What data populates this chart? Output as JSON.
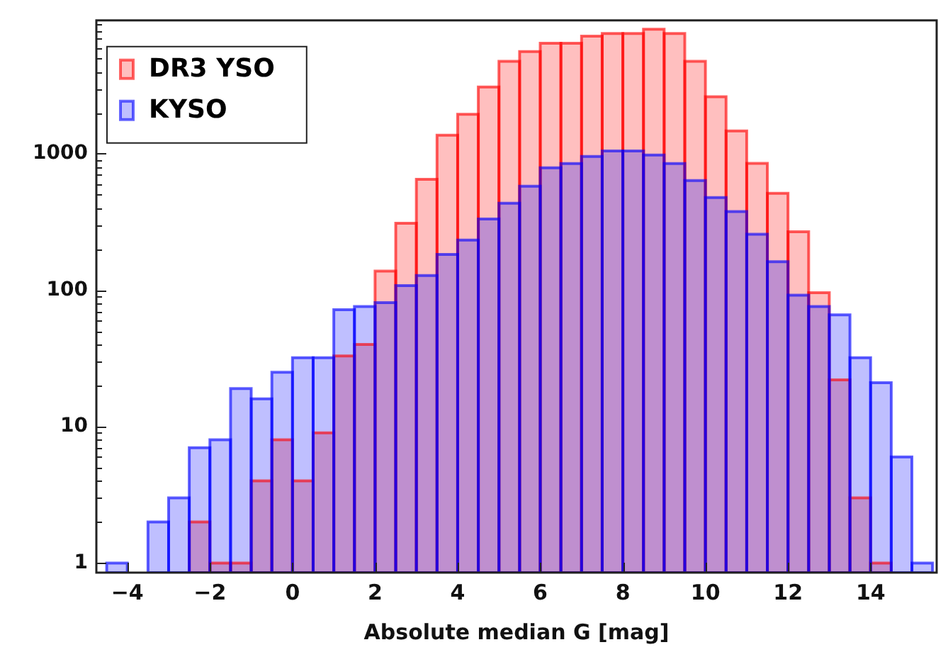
{
  "chart_data": {
    "type": "histogram",
    "xlabel": "Absolute median G [mag]",
    "bins": [
      -4.5,
      -4,
      -3.5,
      -3,
      -2.5,
      -2,
      -1.5,
      -1,
      -0.5,
      0,
      0.5,
      1,
      1.5,
      2,
      2.5,
      3,
      3.5,
      4,
      4.5,
      5,
      5.5,
      6,
      6.5,
      7,
      7.5,
      8,
      8.5,
      9,
      9.5,
      10,
      10.5,
      11,
      11.5,
      12,
      12.5,
      13,
      13.5,
      14,
      14.5,
      15,
      15.5
    ],
    "series": [
      {
        "name": "DR3 YSO",
        "color": "#ff0000",
        "values": [
          null,
          null,
          null,
          null,
          2,
          1,
          1,
          4,
          8,
          4,
          9,
          33,
          40,
          138,
          310,
          650,
          1370,
          1950,
          3090,
          4760,
          5620,
          6470,
          6470,
          7280,
          7620,
          7620,
          8190,
          7620,
          4760,
          2620,
          1470,
          850,
          513,
          268,
          96,
          22,
          3,
          1,
          null,
          null
        ]
      },
      {
        "name": "KYSO",
        "color": "#0000ff",
        "values": [
          1,
          null,
          2,
          3,
          7,
          8,
          19,
          16,
          25,
          32,
          32,
          72,
          76,
          81,
          108,
          128,
          183,
          233,
          333,
          434,
          578,
          790,
          848,
          955,
          1050,
          1050,
          980,
          848,
          636,
          478,
          377,
          257,
          162,
          92,
          76,
          66,
          32,
          21,
          6,
          1
        ]
      }
    ],
    "xlim": [
      -4.75,
      15.6
    ],
    "ylim": [
      0.85,
      9500
    ],
    "xticks": [
      -4,
      -2,
      0,
      2,
      4,
      6,
      8,
      10,
      12,
      14
    ],
    "yticks": [
      1,
      {
        "value": 2,
        "label": null
      },
      {
        "value": 3,
        "label": null
      },
      {
        "value": 4,
        "label": null
      },
      {
        "value": 5,
        "label": null
      },
      {
        "value": 6,
        "label": null
      },
      {
        "value": 7,
        "label": null
      },
      {
        "value": 8,
        "label": null
      },
      {
        "value": 9,
        "label": null
      },
      10,
      {
        "value": 20,
        "label": null
      },
      {
        "value": 30,
        "label": null
      },
      {
        "value": 40,
        "label": null
      },
      {
        "value": 50,
        "label": null
      },
      {
        "value": 60,
        "label": null
      },
      {
        "value": 70,
        "label": null
      },
      {
        "value": 80,
        "label": null
      },
      {
        "value": 90,
        "label": null
      },
      100,
      {
        "value": 200,
        "label": null
      },
      {
        "value": 300,
        "label": null
      },
      {
        "value": 400,
        "label": null
      },
      {
        "value": 500,
        "label": null
      },
      {
        "value": 600,
        "label": null
      },
      {
        "value": 700,
        "label": null
      },
      {
        "value": 800,
        "label": null
      },
      {
        "value": 900,
        "label": null
      },
      1000,
      {
        "value": 2000,
        "label": null
      },
      {
        "value": 3000,
        "label": null
      },
      {
        "value": 4000,
        "label": null
      },
      {
        "value": 5000,
        "label": null
      },
      {
        "value": 6000,
        "label": null
      },
      {
        "value": 7000,
        "label": null
      },
      {
        "value": 8000,
        "label": null
      },
      {
        "value": 9000,
        "label": null
      }
    ],
    "log": "y",
    "grid": false,
    "legend": "top left"
  }
}
